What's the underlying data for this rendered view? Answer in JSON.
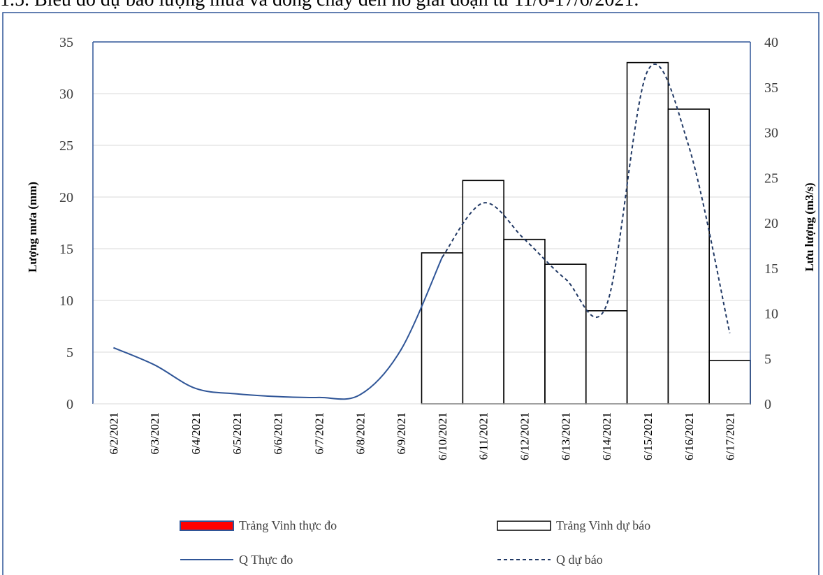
{
  "caption": "1.5. Biểu đồ dự báo lượng mưa và dòng chảy đến hồ giai đoạn từ 11/6-17/6/2021.",
  "chart_data": {
    "type": "bar",
    "categories": [
      "6/2/2021",
      "6/3/2021",
      "6/4/2021",
      "6/5/2021",
      "6/6/2021",
      "6/7/2021",
      "6/8/2021",
      "6/9/2021",
      "6/10/2021",
      "6/11/2021",
      "6/12/2021",
      "6/13/2021",
      "6/14/2021",
      "6/15/2021",
      "6/16/2021",
      "6/17/2021"
    ],
    "xlabel": "",
    "ylabel": "Lượng mưa (mm)",
    "y2label": "Lưu lượng (m3/s)",
    "ylim": [
      0,
      35
    ],
    "y2lim": [
      0,
      40
    ],
    "y_ticks": [
      "0",
      "5",
      "10",
      "15",
      "20",
      "25",
      "30",
      "35"
    ],
    "y2_ticks": [
      "0",
      "5",
      "10",
      "15",
      "20",
      "25",
      "30",
      "35",
      "40"
    ],
    "grid": true,
    "legend_position": "bottom",
    "series": [
      {
        "name": "Trảng Vinh thực đo",
        "kind": "bar",
        "axis": "left",
        "color": "#ff0000",
        "values": [
          null,
          null,
          null,
          null,
          null,
          null,
          null,
          null,
          null,
          null,
          null,
          null,
          null,
          null,
          null,
          null
        ]
      },
      {
        "name": "Trảng Vinh dự báo",
        "kind": "bar",
        "axis": "left",
        "color": "#000000",
        "values": [
          null,
          null,
          null,
          null,
          null,
          null,
          null,
          null,
          14.6,
          21.6,
          15.9,
          13.5,
          9.0,
          33.0,
          28.5,
          4.2
        ]
      },
      {
        "name": "Q Thực đo",
        "kind": "line",
        "axis": "right",
        "color": "#2f5597",
        "values": [
          6.2,
          4.3,
          1.7,
          1.1,
          0.8,
          0.7,
          1.0,
          6.0,
          16.2,
          null,
          null,
          null,
          null,
          null,
          null,
          null
        ]
      },
      {
        "name": "Q dự báo",
        "kind": "line",
        "axis": "right",
        "color": "#203864",
        "dash": true,
        "values": [
          null,
          null,
          null,
          null,
          null,
          null,
          null,
          null,
          16.2,
          22.2,
          18.2,
          13.8,
          10.9,
          36.8,
          28.5,
          7.8
        ]
      }
    ]
  }
}
